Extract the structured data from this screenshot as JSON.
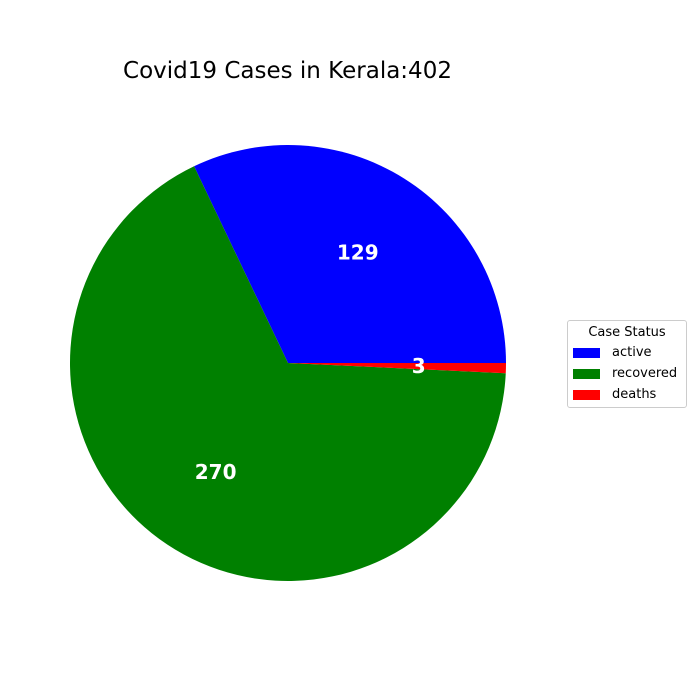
{
  "chart_data": {
    "type": "pie",
    "title": "Covid19 Cases in Kerala:402",
    "categories": [
      "active",
      "recovered",
      "deaths"
    ],
    "values": [
      129,
      270,
      3
    ],
    "colors": [
      "#0000ff",
      "#008000",
      "#ff0000"
    ],
    "label_color": "#ffffff",
    "start_angle_deg": 0,
    "direction": "counterclockwise",
    "legend": {
      "title": "Case Status",
      "placement": "right"
    }
  }
}
